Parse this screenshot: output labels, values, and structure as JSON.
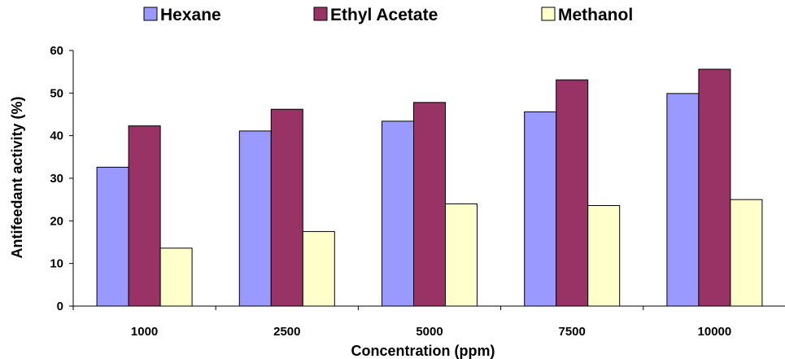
{
  "chart_data": {
    "type": "bar",
    "categories": [
      "1000",
      "2500",
      "5000",
      "7500",
      "10000"
    ],
    "series": [
      {
        "name": "Hexane",
        "values": [
          32.6,
          41.1,
          43.4,
          45.6,
          49.9
        ],
        "color": "#9999FF"
      },
      {
        "name": "Ethyl Acetate",
        "values": [
          42.3,
          46.2,
          47.8,
          53.1,
          55.6
        ],
        "color": "#993366"
      },
      {
        "name": "Methanol",
        "values": [
          13.6,
          17.5,
          24.0,
          23.6,
          25.0
        ],
        "color": "#FFFFCC"
      }
    ],
    "xlabel": "Concentration (ppm)",
    "ylabel": "Antifeedant activity (%)",
    "ylim": [
      0,
      60
    ],
    "yticks": [
      "0",
      "10",
      "20",
      "30",
      "40",
      "50",
      "60"
    ],
    "grid": false,
    "legend_position": "top"
  }
}
